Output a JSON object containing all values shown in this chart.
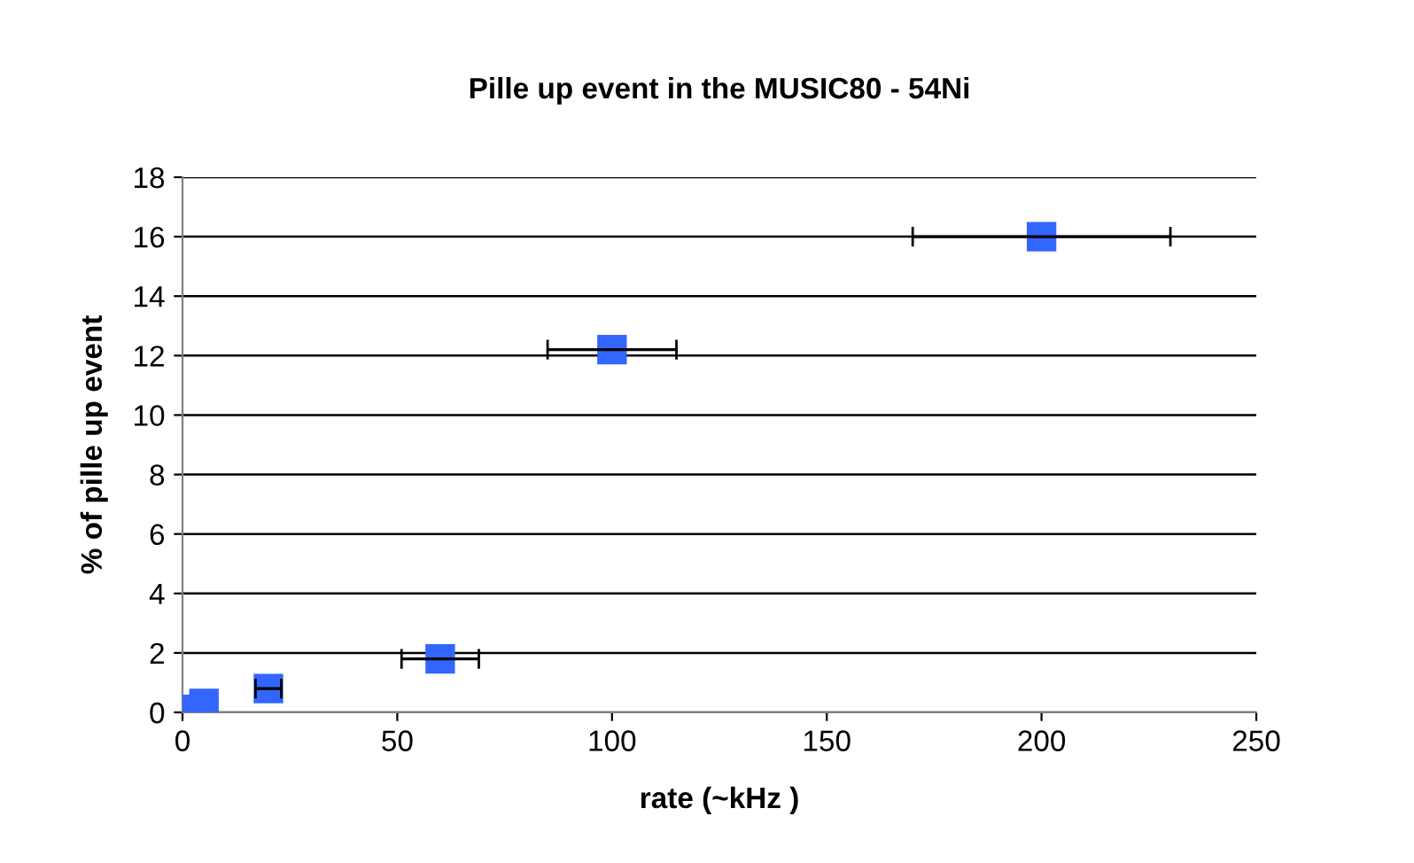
{
  "chart_data": {
    "type": "scatter",
    "title": "Pille up event in the MUSIC80 - 54Ni",
    "xlabel": "rate (~kHz )",
    "ylabel": "% of pille up event",
    "x": [
      2,
      5,
      20,
      60,
      100,
      200
    ],
    "values": [
      0.1,
      0.3,
      0.8,
      1.8,
      12.2,
      16
    ],
    "xerrors": [
      null,
      null,
      3,
      9,
      15,
      30
    ],
    "color": "#3366ff",
    "marker": "square",
    "xlim": [
      0,
      250
    ],
    "xticks": [
      0,
      50,
      100,
      150,
      200,
      250
    ],
    "ylim": [
      0,
      18
    ],
    "yticks": [
      0,
      2,
      4,
      6,
      8,
      10,
      12,
      14,
      16,
      18
    ],
    "grid": "y",
    "legend": false
  }
}
